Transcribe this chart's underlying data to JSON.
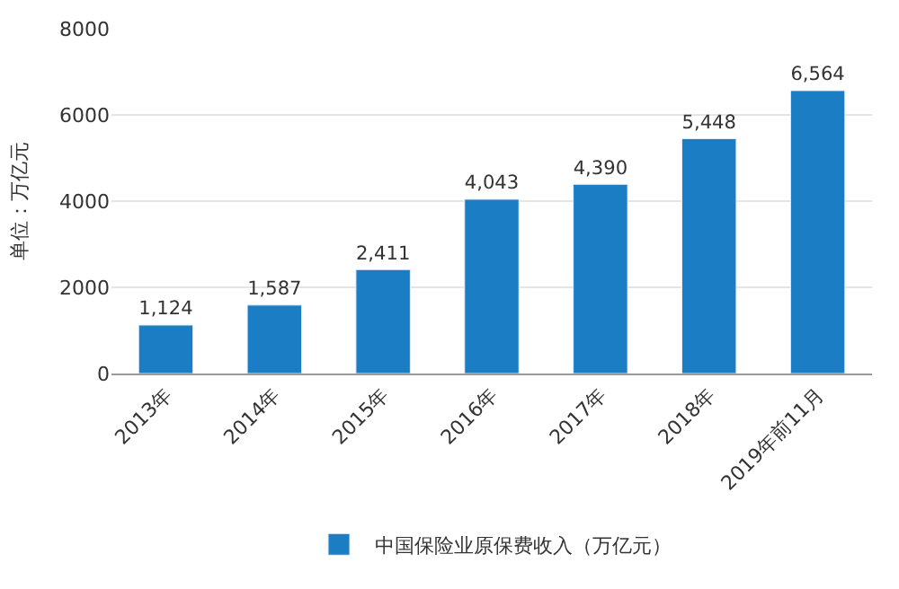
{
  "chart_data": {
    "type": "bar",
    "categories": [
      "2013年",
      "2014年",
      "2015年",
      "2016年",
      "2017年",
      "2018年",
      "2019年前11月"
    ],
    "series": [
      {
        "name": "中国保险业原保费收入（万亿元）",
        "color": "#1b7dc4",
        "values": [
          1124,
          1587,
          2411,
          4043,
          4390,
          5448,
          6564
        ]
      }
    ],
    "value_labels": [
      "1,124",
      "1,587",
      "2,411",
      "4,043",
      "4,390",
      "5,448",
      "6,564"
    ],
    "ylabel": "单位：万亿元",
    "ylim": [
      0,
      8000
    ],
    "yticks": [
      0,
      2000,
      4000,
      6000,
      8000
    ],
    "grid": "y",
    "legend": "bottom"
  }
}
